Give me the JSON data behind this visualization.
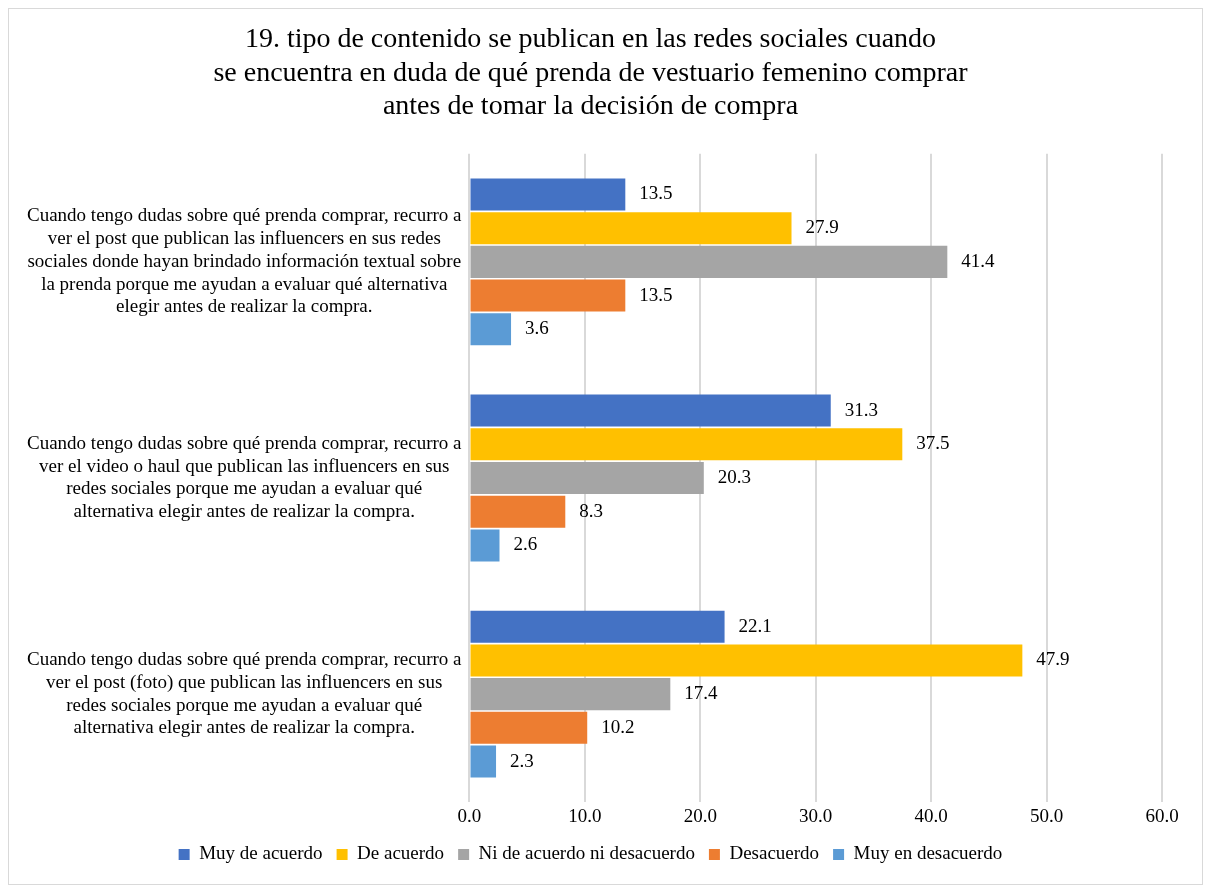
{
  "chart_data": {
    "type": "bar",
    "orientation": "horizontal",
    "title": "19. tipo de contenido se publican en las redes sociales cuando se encuentra en duda de qué prenda de vestuario femenino comprar antes de tomar la decisión de compra",
    "categories": [
      "Cuando tengo dudas sobre qué prenda comprar, recurro a ver el post que publican las influencers en sus redes sociales donde hayan brindado información textual sobre la prenda porque me ayudan a evaluar qué alternativa elegir antes de realizar la compra.",
      "Cuando tengo dudas sobre qué prenda comprar, recurro a ver el video o haul que publican las influencers en sus redes sociales porque me ayudan a evaluar qué alternativa elegir antes de realizar la compra.",
      "Cuando tengo dudas sobre qué prenda comprar, recurro a ver el post (foto) que publican las influencers en sus redes sociales porque me ayudan a evaluar qué alternativa elegir antes de realizar la compra."
    ],
    "series": [
      {
        "name": "Muy de acuerdo",
        "color": "#4472c4",
        "values": [
          13.5,
          31.3,
          22.1
        ]
      },
      {
        "name": "De acuerdo",
        "color": "#ffc000",
        "values": [
          27.9,
          37.5,
          47.9
        ]
      },
      {
        "name": "Ni de acuerdo ni desacuerdo",
        "color": "#a5a5a5",
        "values": [
          41.4,
          20.3,
          17.4
        ]
      },
      {
        "name": "Desacuerdo",
        "color": "#ed7d31",
        "values": [
          13.5,
          8.3,
          10.2
        ]
      },
      {
        "name": "Muy en desacuerdo",
        "color": "#5b9bd5",
        "values": [
          3.6,
          2.6,
          2.3
        ]
      }
    ],
    "xlim": [
      0,
      60
    ],
    "xticks": [
      {
        "value": 0,
        "label": "0.0"
      },
      {
        "value": 10,
        "label": "10.0"
      },
      {
        "value": 20,
        "label": "20.0"
      },
      {
        "value": 30,
        "label": "30.0"
      },
      {
        "value": 40,
        "label": "40.0"
      },
      {
        "value": 50,
        "label": "50.0"
      },
      {
        "value": 60,
        "label": "60.0"
      }
    ],
    "grid": "x",
    "legend": "bottom",
    "data_labels": true
  }
}
